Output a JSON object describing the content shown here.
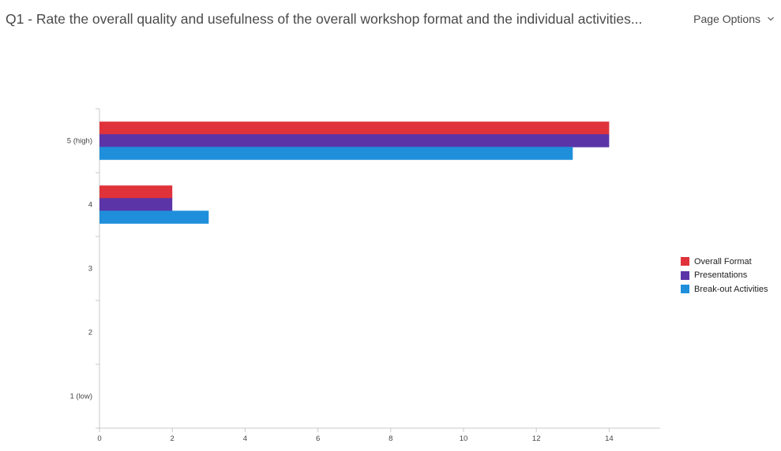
{
  "header": {
    "question_title": "Q1 - Rate the overall quality and usefulness of the overall workshop format and the individual activities...",
    "page_options_label": "Page Options",
    "page_options_icon": "chevron-down-icon"
  },
  "chart_data": {
    "type": "bar",
    "orientation": "horizontal",
    "categories": [
      "5 (high)",
      "4",
      "3",
      "2",
      "1 (low)"
    ],
    "series": [
      {
        "name": "Overall Format",
        "color": "#e0323a",
        "values": [
          14,
          2,
          0,
          0,
          0
        ]
      },
      {
        "name": "Presentations",
        "color": "#5b35a8",
        "values": [
          14,
          2,
          0,
          0,
          0
        ]
      },
      {
        "name": "Break-out Activities",
        "color": "#1f8fdb",
        "values": [
          13,
          3,
          0,
          0,
          0
        ]
      }
    ],
    "xticks": [
      0,
      2,
      4,
      6,
      8,
      10,
      12,
      14
    ],
    "xlim": [
      0,
      15.4
    ],
    "legend_position": "right",
    "grid": false
  }
}
